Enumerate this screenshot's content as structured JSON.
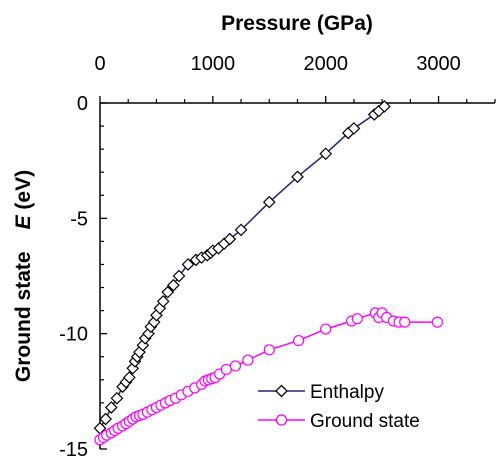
{
  "chart_data": {
    "type": "line",
    "x_axis": {
      "label": "Pressure (GPa)",
      "position": "top",
      "range": [
        0,
        3500
      ],
      "ticks": [
        0,
        1000,
        2000,
        3000
      ],
      "tick_labels": [
        "0",
        "1000",
        "2000",
        "3000"
      ]
    },
    "y_axis": {
      "label_main": "Ground state",
      "label_e": "E",
      "label_unit": " (eV)",
      "range": [
        -15,
        0
      ],
      "ticks": [
        0,
        -5,
        -10,
        -15
      ],
      "tick_labels": [
        "0",
        "-5",
        "-10",
        "-15"
      ]
    },
    "grid": false,
    "legend": {
      "placement": "bottom-right"
    },
    "series": [
      {
        "name": "Enthalpy",
        "color": "#1a237e",
        "marker": "diamond",
        "marker_color": "#000000",
        "x": [
          0,
          50,
          100,
          150,
          200,
          230,
          260,
          290,
          310,
          330,
          350,
          380,
          400,
          430,
          450,
          480,
          500,
          530,
          560,
          600,
          650,
          700,
          780,
          850,
          900,
          950,
          980,
          1000,
          1050,
          1100,
          1150,
          1250,
          1500,
          1750,
          2000,
          2200,
          2250,
          2430,
          2470,
          2520
        ],
        "y": [
          -14.1,
          -13.7,
          -13.2,
          -12.8,
          -12.3,
          -12.1,
          -11.9,
          -11.5,
          -11.2,
          -11.0,
          -10.8,
          -10.5,
          -10.2,
          -10.0,
          -9.7,
          -9.5,
          -9.2,
          -8.9,
          -8.6,
          -8.2,
          -7.9,
          -7.5,
          -7.0,
          -6.8,
          -6.7,
          -6.6,
          -6.5,
          -6.4,
          -6.3,
          -6.1,
          -5.9,
          -5.5,
          -4.3,
          -3.2,
          -2.2,
          -1.3,
          -1.1,
          -0.5,
          -0.35,
          -0.15
        ]
      },
      {
        "name": "Ground state",
        "color": "#ff00ff",
        "marker": "circle",
        "marker_color": "#ff00ff",
        "x": [
          0,
          30,
          60,
          100,
          130,
          160,
          200,
          230,
          260,
          290,
          320,
          350,
          380,
          420,
          460,
          500,
          540,
          580,
          620,
          670,
          720,
          780,
          840,
          900,
          930,
          960,
          990,
          1020,
          1060,
          1120,
          1200,
          1310,
          1500,
          1760,
          2000,
          2230,
          2280,
          2440,
          2470,
          2500,
          2540,
          2600,
          2650,
          2700,
          2990
        ],
        "y": [
          -14.6,
          -14.5,
          -14.4,
          -14.3,
          -14.2,
          -14.1,
          -14.0,
          -13.9,
          -13.8,
          -13.7,
          -13.6,
          -13.55,
          -13.5,
          -13.4,
          -13.3,
          -13.2,
          -13.1,
          -13.0,
          -12.9,
          -12.8,
          -12.65,
          -12.5,
          -12.35,
          -12.2,
          -12.05,
          -12.0,
          -11.95,
          -11.9,
          -11.75,
          -11.55,
          -11.4,
          -11.15,
          -10.7,
          -10.3,
          -9.8,
          -9.45,
          -9.35,
          -9.1,
          -9.3,
          -9.1,
          -9.3,
          -9.45,
          -9.5,
          -9.5,
          -9.5
        ]
      }
    ]
  }
}
